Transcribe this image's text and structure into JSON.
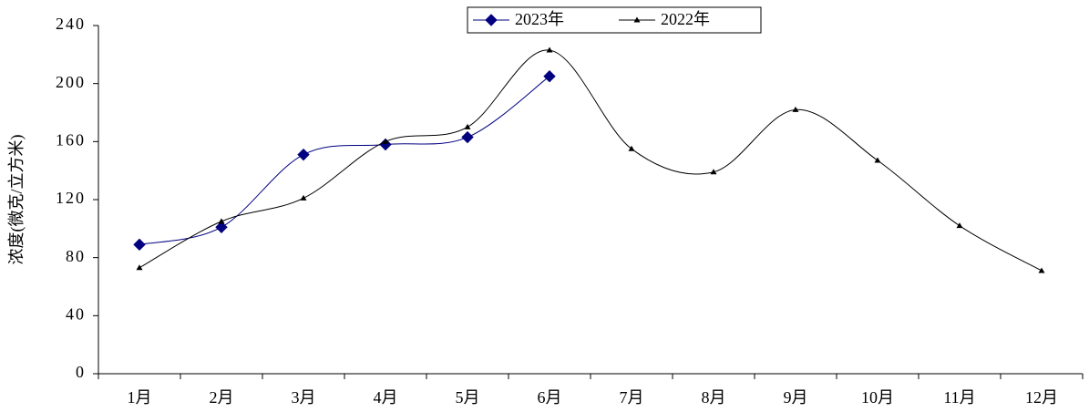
{
  "chart_data": {
    "type": "line",
    "y_label": "浓度(微克/立方米)",
    "categories": [
      "1月",
      "2月",
      "3月",
      "4月",
      "5月",
      "6月",
      "7月",
      "8月",
      "9月",
      "10月",
      "11月",
      "12月"
    ],
    "series": [
      {
        "name": "2023年",
        "color": "#000080",
        "marker": "diamond",
        "values": [
          89,
          101,
          151,
          158,
          163,
          205,
          null,
          null,
          null,
          null,
          null,
          null
        ]
      },
      {
        "name": "2022年",
        "color": "#000000",
        "marker": "triangle",
        "values": [
          73,
          105,
          121,
          160,
          170,
          223,
          155,
          139,
          182,
          147,
          102,
          71
        ]
      }
    ],
    "ylim": [
      0,
      240
    ],
    "yticks": [
      0,
      40,
      80,
      120,
      160,
      200,
      240
    ],
    "grid": false,
    "legend": "top",
    "smooth": true
  }
}
